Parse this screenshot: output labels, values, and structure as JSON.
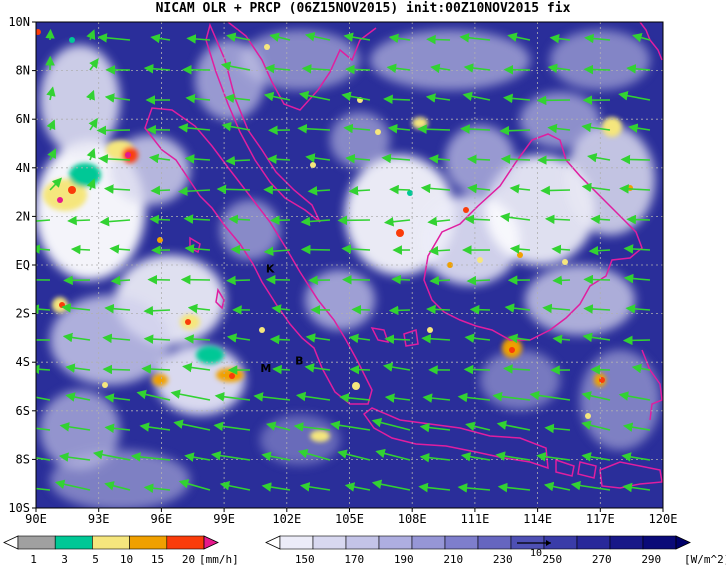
{
  "title": "NICAM OLR + PRCP (06Z15NOV2015) init:00Z10NOV2015 fix",
  "map": {
    "lon_range": [
      90,
      120
    ],
    "lat_range": [
      -10,
      10
    ],
    "lon_ticks": [
      "90E",
      "93E",
      "96E",
      "99E",
      "102E",
      "105E",
      "108E",
      "111E",
      "114E",
      "117E",
      "120E"
    ],
    "lat_ticks": [
      "10N",
      "8N",
      "6N",
      "4N",
      "2N",
      "EQ",
      "2S",
      "4S",
      "6S",
      "8S",
      "10S"
    ],
    "places": [
      {
        "label": "K",
        "lon": 101.2,
        "lat": -0.3
      },
      {
        "label": "M",
        "lon": 101.0,
        "lat": -4.4
      },
      {
        "label": "B",
        "lon": 102.6,
        "lat": -4.1
      }
    ]
  },
  "precip_colorbar": {
    "labels": [
      "1",
      "3",
      "5",
      "10",
      "15",
      "20"
    ],
    "unit": "[mm/h]",
    "colors": [
      "#ffffff",
      "#a0a0a0",
      "#00c896",
      "#f5e67d",
      "#f0a000",
      "#fa3c0a",
      "#e6198c"
    ]
  },
  "olr_colorbar": {
    "labels": [
      "150",
      "170",
      "190",
      "210",
      "230",
      "250",
      "270",
      "290"
    ],
    "unit": "[W/m^2]",
    "vector_ref": "10",
    "colors": [
      "#ffffff",
      "#ececf8",
      "#d8d8f0",
      "#c4c4e8",
      "#aeaee0",
      "#9696d6",
      "#7e7ecc",
      "#6666c0",
      "#4e50b4",
      "#3a3ca8",
      "#28289a",
      "#181888",
      "#0a0a78",
      "#00006a"
    ]
  },
  "colors": {
    "ocean": "#2a2e9a",
    "coast": "#e01ea0",
    "wind": "#32d232"
  }
}
